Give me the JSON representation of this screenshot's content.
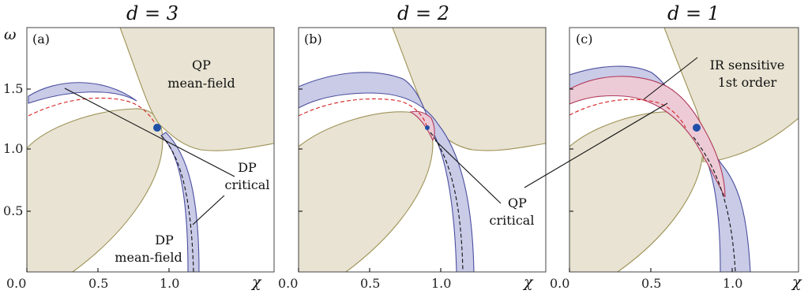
{
  "chart_data": [
    {
      "type": "phase-diagram",
      "panel": "(a)",
      "title": "d = 3",
      "xlabel": "χ",
      "ylabel": "ω",
      "xlim": [
        0,
        1.15
      ],
      "ylim": [
        0,
        1.8
      ],
      "x_ticks": [
        "0.0",
        "0.5",
        "1.0"
      ],
      "y_ticks": [
        "0.5",
        "1.0",
        "1.5"
      ],
      "critical_point": {
        "x": 0.78,
        "y": 1.18
      },
      "regions": [
        "QP mean-field",
        "DP mean-field",
        "DP critical"
      ]
    },
    {
      "type": "phase-diagram",
      "panel": "(b)",
      "title": "d = 2",
      "xlabel": "χ",
      "xlim": [
        0,
        1.15
      ],
      "ylim": [
        0,
        1.8
      ],
      "x_ticks": [
        "0.0",
        "0.5",
        "1.0"
      ],
      "critical_point": {
        "x": 0.78,
        "y": 1.18
      },
      "regions": [
        "QP critical"
      ]
    },
    {
      "type": "phase-diagram",
      "panel": "(c)",
      "title": "d = 1",
      "xlabel": "χ",
      "xlim": [
        0,
        1.15
      ],
      "ylim": [
        0,
        1.8
      ],
      "x_ticks": [
        "0.0",
        "0.5",
        "1.0"
      ],
      "critical_point": {
        "x": 0.76,
        "y": 1.18
      },
      "regions": [
        "IR sensitive 1st order"
      ]
    }
  ],
  "labels": {
    "title_a": "d = 3",
    "title_b": "d = 2",
    "title_c": "d = 1",
    "letter_a": "(a)",
    "letter_b": "(b)",
    "letter_c": "(c)",
    "omega": "ω",
    "chi": "χ",
    "x0": "0.0",
    "x05": "0.5",
    "x1": "1.0",
    "y05": "0.5",
    "y10": "1.0",
    "y15": "1.5",
    "qp_mf_1": "QP",
    "qp_mf_2": "mean-field",
    "dp_mf_1": "DP",
    "dp_mf_2": "mean-field",
    "dp_crit_1": "DP",
    "dp_crit_2": "critical",
    "qp_crit_1": "QP",
    "qp_crit_2": "critical",
    "ir_1": "IR sensitive",
    "ir_2": "1st order"
  },
  "colors": {
    "qp_region": "#e8e3d2",
    "dp_critical_band": "#c9cbe7",
    "first_order_band": "#eccbd6",
    "critical_point": "#1f4fa8",
    "dashed_line": "#d42020"
  }
}
